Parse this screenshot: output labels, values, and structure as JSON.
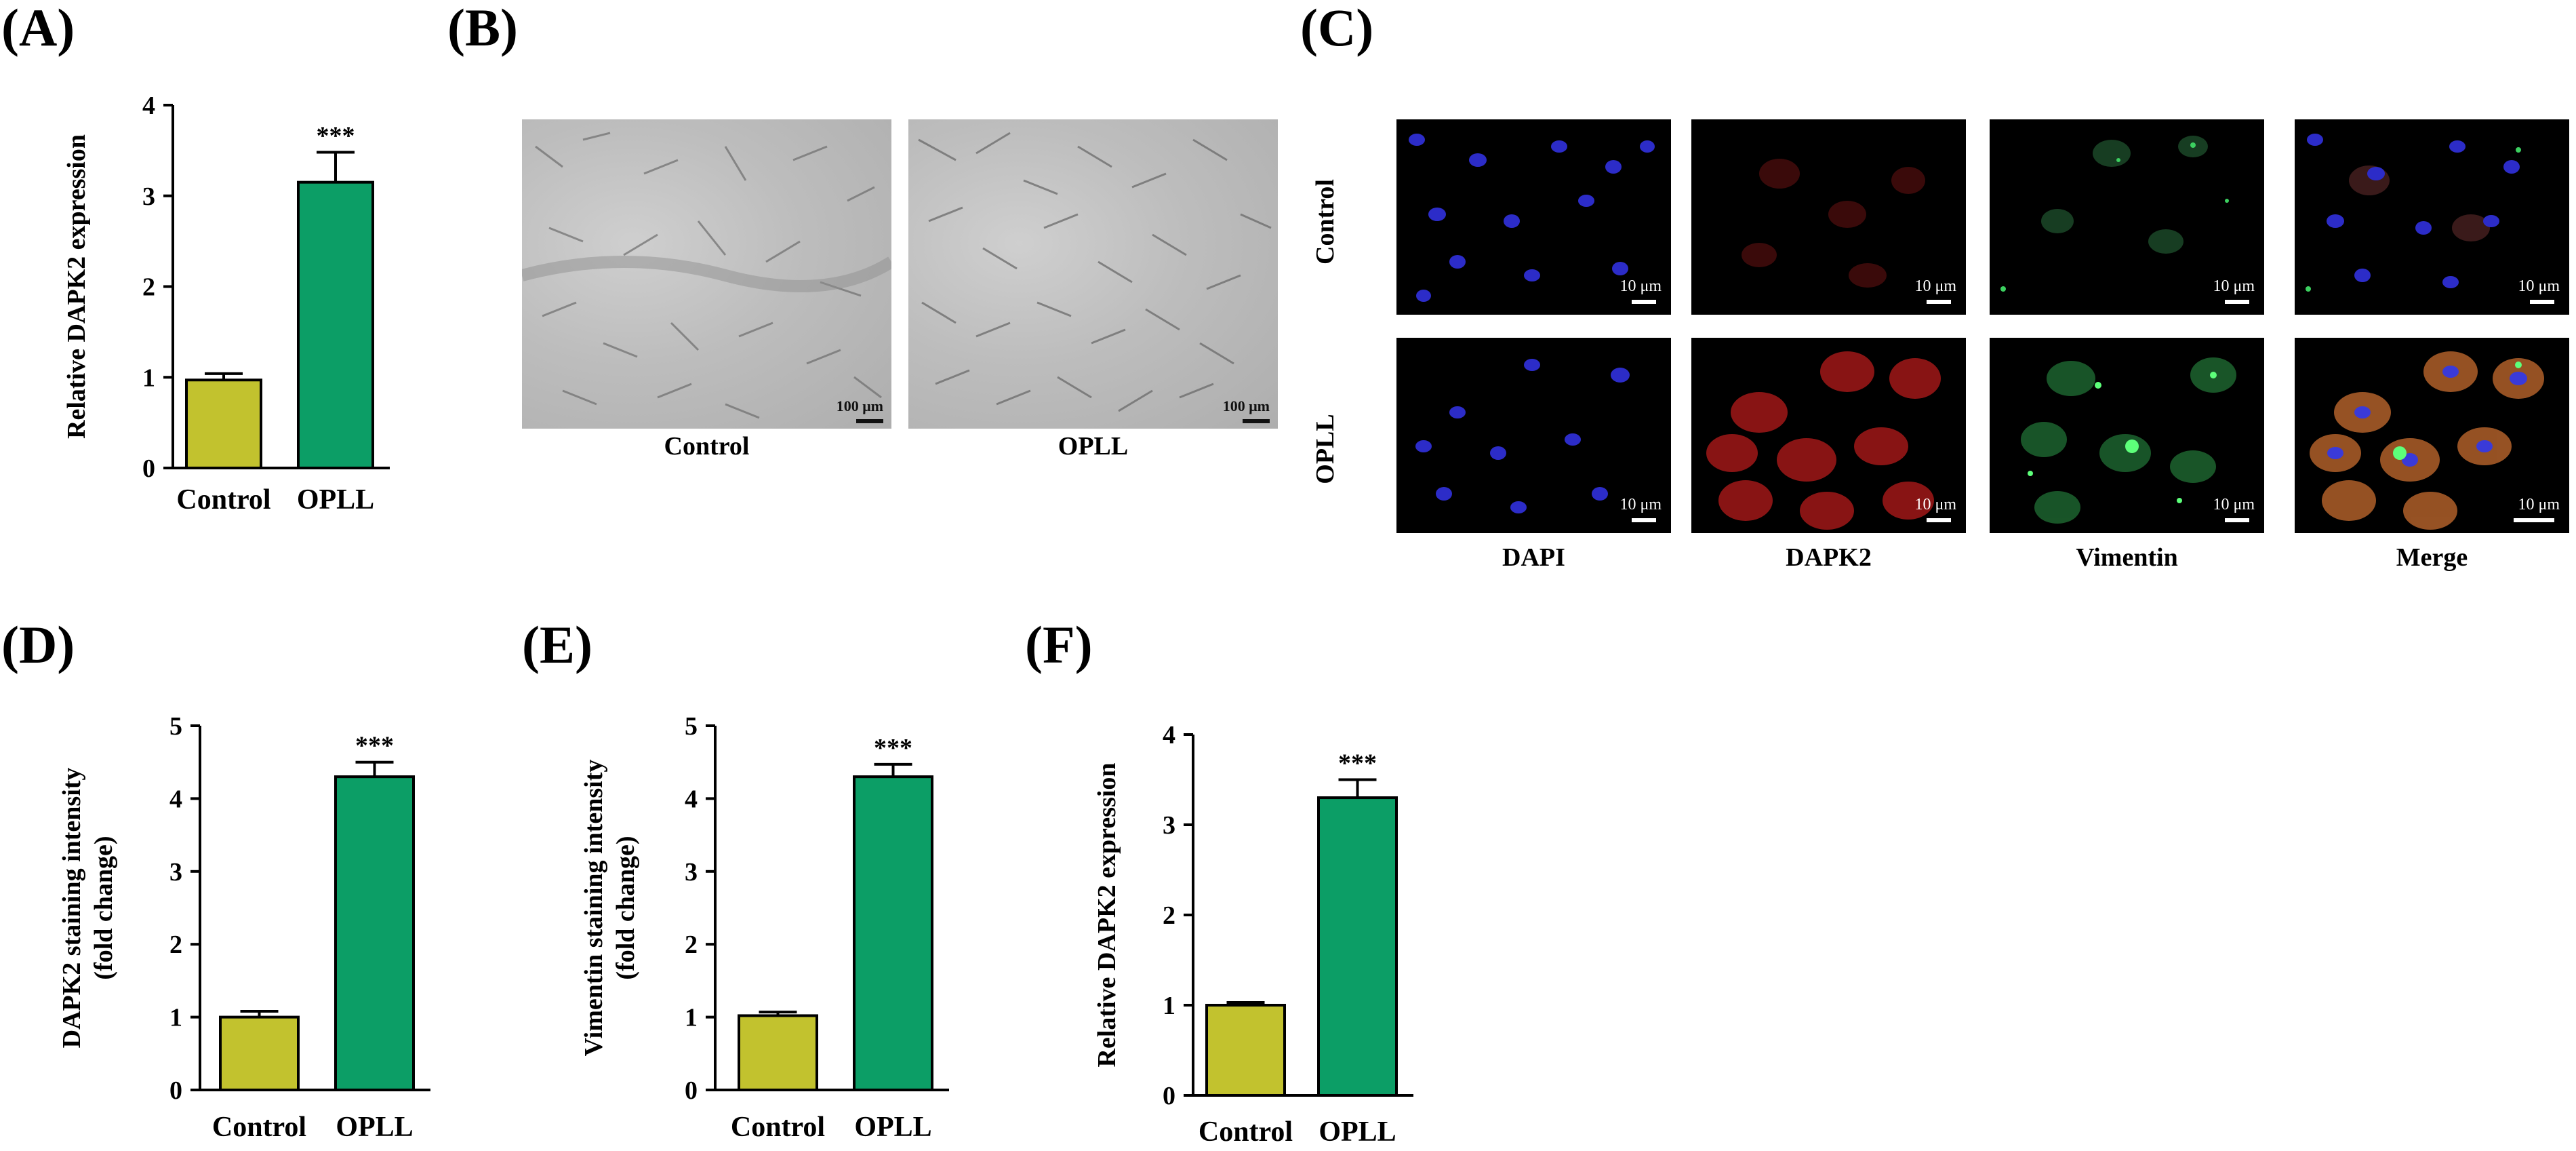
{
  "panel_labels": {
    "a": "(A)",
    "b": "(B)",
    "c": "(C)",
    "d": "(D)",
    "e": "(E)",
    "f": "(F)"
  },
  "colors": {
    "control": "#c2c22e",
    "opll": "#0c9e66",
    "axis": "#000000"
  },
  "significance": "***",
  "chart_data": [
    {
      "id": "A",
      "type": "bar",
      "categories": [
        "Control",
        "OPLL"
      ],
      "values": [
        0.97,
        3.15
      ],
      "errors": [
        0.07,
        0.33
      ],
      "ylabel": "Relative DAPK2 expression",
      "ylim": [
        0,
        4
      ],
      "yticks": [
        0,
        1,
        2,
        3,
        4
      ]
    },
    {
      "id": "D",
      "type": "bar",
      "categories": [
        "Control",
        "OPLL"
      ],
      "values": [
        1.0,
        4.3
      ],
      "errors": [
        0.08,
        0.2
      ],
      "ylabel": "DAPK2 staining intensity",
      "ylabel2": "(fold change)",
      "ylim": [
        0,
        5
      ],
      "yticks": [
        0,
        1,
        2,
        3,
        4,
        5
      ]
    },
    {
      "id": "E",
      "type": "bar",
      "categories": [
        "Control",
        "OPLL"
      ],
      "values": [
        1.02,
        4.3
      ],
      "errors": [
        0.05,
        0.17
      ],
      "ylabel": "Vimentin staining intensity",
      "ylabel2": "(fold change)",
      "ylim": [
        0,
        5
      ],
      "yticks": [
        0,
        1,
        2,
        3,
        4,
        5
      ]
    },
    {
      "id": "F",
      "type": "bar",
      "categories": [
        "Control",
        "OPLL"
      ],
      "values": [
        1.0,
        3.3
      ],
      "errors": [
        0.03,
        0.2
      ],
      "ylabel": "Relative DAPK2 expression",
      "ylim": [
        0,
        4
      ],
      "yticks": [
        0,
        1,
        2,
        3,
        4
      ]
    }
  ],
  "panel_b": {
    "captions": [
      "Control",
      "OPLL"
    ],
    "scale_text": "100 μm"
  },
  "panel_c": {
    "rows": [
      "Control",
      "OPLL"
    ],
    "columns": [
      "DAPI",
      "DAPK2",
      "Vimentin",
      "Merge"
    ],
    "scale_text": "10 μm"
  }
}
